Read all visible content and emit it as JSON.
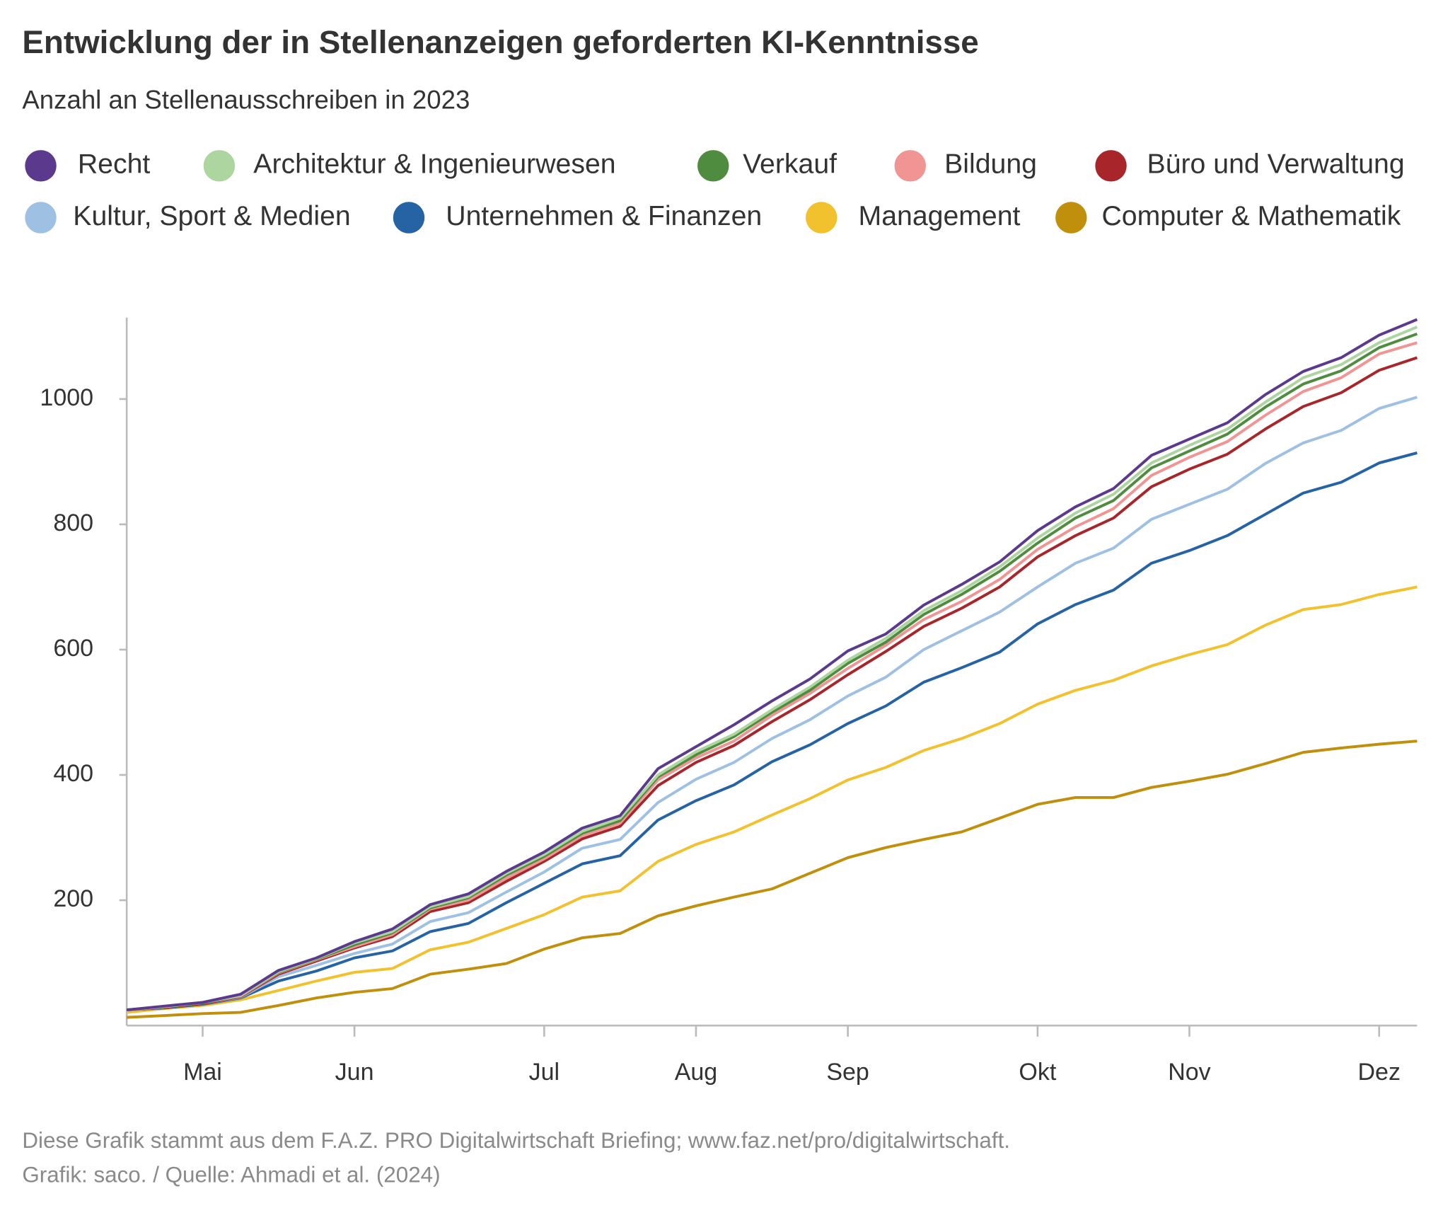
{
  "chart_data": {
    "type": "line",
    "title": "Entwicklung der in Stellenanzeigen geforderten KI-Kenntnisse",
    "subtitle": "Anzahl an Stellenausschreiben in 2023",
    "note": "Diese Grafik stammt aus dem F.A.Z. PRO Digitalwirtschaft Briefing; www.faz.net/pro/digitalwirtschaft.",
    "source": "Grafik: saco. / Quelle: Ahmadi et al. (2024)",
    "categories": [
      null,
      null,
      "Mai",
      null,
      null,
      null,
      "Jun",
      null,
      null,
      null,
      null,
      "Jul",
      null,
      null,
      null,
      "Aug",
      null,
      null,
      null,
      "Sep",
      null,
      null,
      null,
      null,
      "Okt",
      null,
      null,
      null,
      "Nov",
      null,
      null,
      null,
      null,
      "Dez",
      null
    ],
    "ylim": [
      0,
      1130
    ],
    "yticks": [
      200,
      400,
      600,
      800,
      1000
    ],
    "series": [
      {
        "name": "Recht",
        "color": "#5b3a8e",
        "values": [
          25,
          31,
          37,
          50,
          88,
          108,
          134,
          154,
          193,
          210,
          246,
          277,
          315,
          335,
          410,
          445,
          480,
          518,
          553,
          598,
          625,
          671,
          704,
          740,
          790,
          828,
          857,
          910,
          936,
          962,
          1007,
          1044,
          1066,
          1102,
          1127
        ]
      },
      {
        "name": "Architektur & Ingenieurwesen",
        "color": "#acd5a0",
        "values": [
          25,
          30,
          37,
          48,
          86,
          107,
          132,
          150,
          190,
          206,
          243,
          273,
          310,
          331,
          400,
          437,
          465,
          504,
          540,
          583,
          618,
          662,
          694,
          732,
          778,
          818,
          848,
          898,
          926,
          952,
          995,
          1034,
          1055,
          1090,
          1115
        ]
      },
      {
        "name": "Verkauf",
        "color": "#4f8c3f",
        "values": [
          25,
          30,
          36,
          48,
          85,
          106,
          129,
          148,
          188,
          204,
          240,
          270,
          307,
          327,
          397,
          432,
          461,
          500,
          535,
          578,
          612,
          656,
          688,
          725,
          770,
          810,
          838,
          890,
          917,
          944,
          987,
          1024,
          1045,
          1082,
          1104
        ]
      },
      {
        "name": "Bildung",
        "color": "#f09494",
        "values": [
          25,
          30,
          36,
          47,
          84,
          105,
          126,
          145,
          186,
          200,
          235,
          266,
          303,
          323,
          392,
          427,
          454,
          495,
          530,
          570,
          607,
          648,
          677,
          712,
          760,
          796,
          825,
          878,
          907,
          932,
          974,
          1012,
          1034,
          1072,
          1090
        ]
      },
      {
        "name": "Büro und Verwaltung",
        "color": "#a8262a",
        "values": [
          25,
          29,
          35,
          46,
          82,
          103,
          124,
          142,
          182,
          196,
          230,
          262,
          298,
          318,
          383,
          420,
          447,
          485,
          520,
          560,
          597,
          637,
          666,
          700,
          748,
          782,
          810,
          860,
          888,
          912,
          952,
          988,
          1010,
          1046,
          1066
        ]
      },
      {
        "name": "Kultur, Sport & Medien",
        "color": "#9dc0e3",
        "values": [
          25,
          29,
          35,
          45,
          78,
          96,
          115,
          130,
          166,
          180,
          213,
          245,
          283,
          297,
          356,
          393,
          420,
          458,
          488,
          526,
          556,
          600,
          630,
          660,
          700,
          738,
          762,
          808,
          832,
          856,
          897,
          930,
          950,
          985,
          1003
        ]
      },
      {
        "name": "Unternehmen & Finanzen",
        "color": "#2563a4",
        "values": [
          25,
          28,
          34,
          44,
          71,
          87,
          108,
          119,
          150,
          163,
          196,
          227,
          258,
          271,
          328,
          359,
          384,
          421,
          448,
          482,
          510,
          548,
          571,
          596,
          641,
          672,
          695,
          738,
          758,
          782,
          816,
          850,
          867,
          898,
          914
        ]
      },
      {
        "name": "Management",
        "color": "#f2c12e",
        "values": [
          21,
          27,
          32,
          41,
          56,
          71,
          85,
          91,
          121,
          133,
          155,
          177,
          205,
          215,
          262,
          289,
          309,
          336,
          362,
          392,
          412,
          439,
          458,
          482,
          513,
          535,
          551,
          574,
          592,
          608,
          639,
          664,
          672,
          688,
          700
        ]
      },
      {
        "name": "Computer & Mathematik",
        "color": "#c0900d",
        "values": [
          13,
          16,
          19,
          21,
          32,
          44,
          53,
          59,
          82,
          90,
          99,
          122,
          140,
          147,
          175,
          191,
          205,
          218,
          243,
          268,
          284,
          297,
          309,
          331,
          353,
          364,
          364,
          380,
          390,
          401,
          418,
          436,
          443,
          449,
          454
        ]
      }
    ]
  }
}
